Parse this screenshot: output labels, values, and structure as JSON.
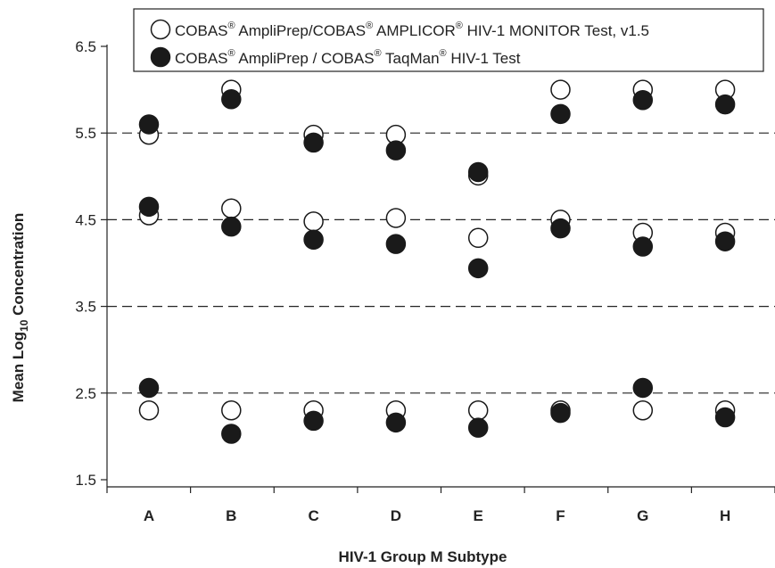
{
  "chart_data": {
    "type": "scatter",
    "categories": [
      "A",
      "B",
      "C",
      "D",
      "E",
      "F",
      "G",
      "H"
    ],
    "xlabel": "HIV-1 Group M Subtype",
    "ylabel_main": "Mean Log",
    "ylabel_sub": "10",
    "ylabel_tail": " Concentration",
    "ylim": [
      1.5,
      6.5
    ],
    "yticks": [
      "1.5",
      "2.5",
      "3.5",
      "4.5",
      "5.5",
      "6.5"
    ],
    "dashed_gridlines": [
      2.5,
      3.5,
      4.5,
      5.5
    ],
    "legend_position": "top-right",
    "series": [
      {
        "legend": {
          "parts": [
            "COBAS",
            "®",
            " AmpliPrep/COBAS",
            "®",
            " AMPLICOR",
            "®",
            " HIV-1 MONITOR Test, v1.5"
          ]
        },
        "marker": "open-circle",
        "points": [
          {
            "x": "A",
            "y": [
              2.3,
              4.55,
              5.48
            ]
          },
          {
            "x": "B",
            "y": [
              2.3,
              4.63,
              6.0
            ]
          },
          {
            "x": "C",
            "y": [
              2.3,
              4.48,
              5.48
            ]
          },
          {
            "x": "D",
            "y": [
              2.3,
              4.52,
              5.48
            ]
          },
          {
            "x": "E",
            "y": [
              2.3,
              4.29,
              5.01
            ]
          },
          {
            "x": "F",
            "y": [
              2.3,
              4.5,
              6.0
            ]
          },
          {
            "x": "G",
            "y": [
              2.3,
              4.35,
              6.0
            ]
          },
          {
            "x": "H",
            "y": [
              2.3,
              4.35,
              6.0
            ]
          }
        ]
      },
      {
        "legend": {
          "parts": [
            "COBAS",
            "®",
            " AmpliPrep / COBAS",
            "®",
            " TaqMan",
            "®",
            " HIV-1 Test"
          ]
        },
        "marker": "filled-circle",
        "points": [
          {
            "x": "A",
            "y": [
              2.56,
              4.65,
              5.6
            ]
          },
          {
            "x": "B",
            "y": [
              2.03,
              4.42,
              5.89
            ]
          },
          {
            "x": "C",
            "y": [
              2.18,
              4.27,
              5.39
            ]
          },
          {
            "x": "D",
            "y": [
              2.16,
              4.22,
              5.3
            ]
          },
          {
            "x": "E",
            "y": [
              2.1,
              3.94,
              5.05
            ]
          },
          {
            "x": "F",
            "y": [
              2.27,
              4.4,
              5.72
            ]
          },
          {
            "x": "G",
            "y": [
              2.56,
              4.19,
              5.88
            ]
          },
          {
            "x": "H",
            "y": [
              2.22,
              4.25,
              5.83
            ]
          }
        ]
      }
    ]
  }
}
